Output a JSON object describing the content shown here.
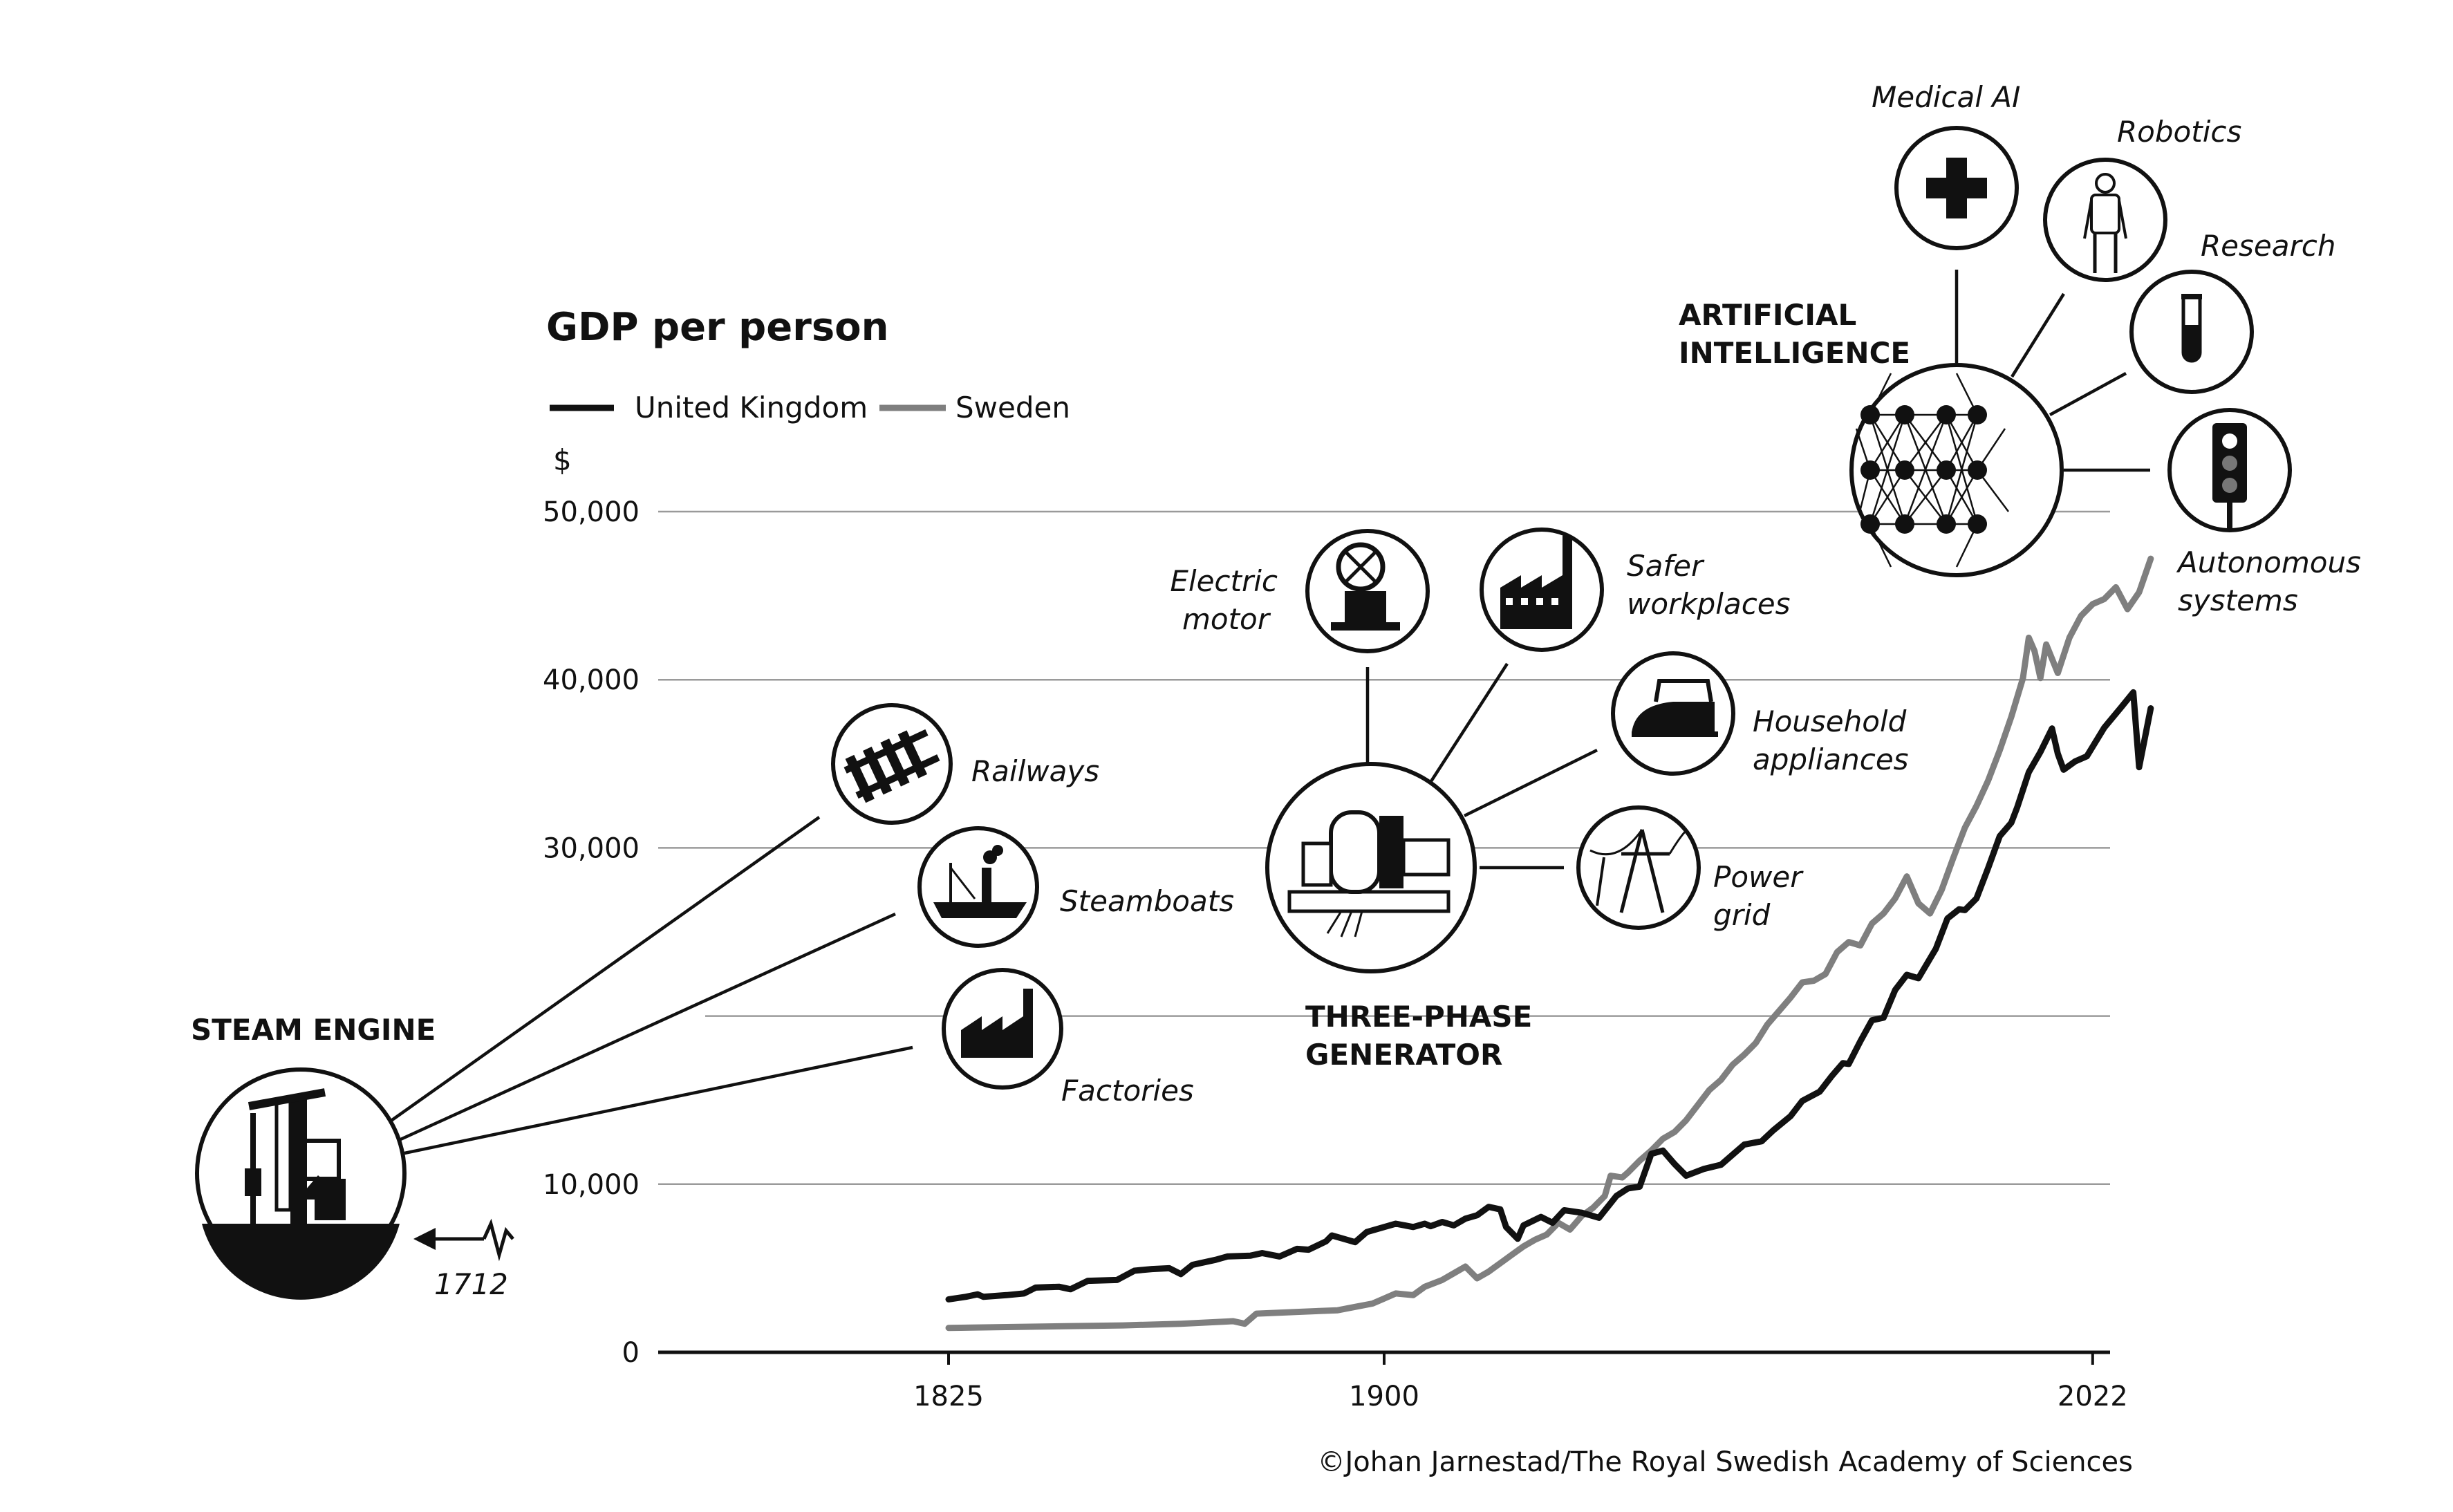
{
  "chart_data": {
    "type": "line",
    "title": "GDP per person",
    "ylabel": "$",
    "xlabel": "",
    "xlim": [
      1775,
      2025
    ],
    "ylim": [
      0,
      50000
    ],
    "x_ticks": [
      "1825",
      "1900",
      "2022"
    ],
    "x_tick_values": [
      1825,
      1900,
      2022
    ],
    "y_ticks": [
      "0",
      "10,000",
      "30,000",
      "40,000",
      "50,000"
    ],
    "y_tick_values": [
      0,
      10000,
      30000,
      40000,
      50000
    ],
    "legend": [
      "United Kingdom",
      "Sweden"
    ],
    "series": [
      {
        "name": "United Kingdom",
        "color": "#111111",
        "points": [
          [
            1825,
            3150
          ],
          [
            1828,
            3300
          ],
          [
            1830,
            3450
          ],
          [
            1831,
            3300
          ],
          [
            1835,
            3400
          ],
          [
            1838,
            3500
          ],
          [
            1840,
            3850
          ],
          [
            1844,
            3900
          ],
          [
            1846,
            3750
          ],
          [
            1849,
            4250
          ],
          [
            1854,
            4300
          ],
          [
            1857,
            4850
          ],
          [
            1860,
            4950
          ],
          [
            1863,
            5000
          ],
          [
            1865,
            4650
          ],
          [
            1867,
            5200
          ],
          [
            1871,
            5500
          ],
          [
            1873,
            5700
          ],
          [
            1877,
            5750
          ],
          [
            1879,
            5900
          ],
          [
            1882,
            5700
          ],
          [
            1885,
            6150
          ],
          [
            1887,
            6100
          ],
          [
            1890,
            6600
          ],
          [
            1891,
            6950
          ],
          [
            1893,
            6750
          ],
          [
            1895,
            6550
          ],
          [
            1897,
            7150
          ],
          [
            1900,
            7450
          ],
          [
            1902,
            7650
          ],
          [
            1905,
            7450
          ],
          [
            1907,
            7650
          ],
          [
            1908,
            7500
          ],
          [
            1910,
            7750
          ],
          [
            1912,
            7550
          ],
          [
            1914,
            7950
          ],
          [
            1916,
            8150
          ],
          [
            1918,
            8650
          ],
          [
            1920,
            8500
          ],
          [
            1921,
            7450
          ],
          [
            1923,
            6750
          ],
          [
            1924,
            7550
          ],
          [
            1927,
            8050
          ],
          [
            1929,
            7700
          ],
          [
            1931,
            8450
          ],
          [
            1934,
            8300
          ],
          [
            1937,
            8000
          ],
          [
            1940,
            9300
          ],
          [
            1942,
            9750
          ],
          [
            1944,
            9850
          ],
          [
            1946,
            11800
          ],
          [
            1948,
            12000
          ],
          [
            1950,
            11200
          ],
          [
            1952,
            10500
          ],
          [
            1955,
            10900
          ],
          [
            1958,
            11150
          ],
          [
            1960,
            11750
          ],
          [
            1962,
            12350
          ],
          [
            1965,
            12550
          ],
          [
            1967,
            13200
          ],
          [
            1970,
            14050
          ],
          [
            1972,
            14950
          ],
          [
            1975,
            15500
          ],
          [
            1977,
            16400
          ],
          [
            1979,
            17200
          ],
          [
            1980,
            17150
          ],
          [
            1982,
            18500
          ],
          [
            1984,
            19750
          ],
          [
            1986,
            19900
          ],
          [
            1988,
            21550
          ],
          [
            1990,
            22450
          ],
          [
            1992,
            22250
          ],
          [
            1995,
            24000
          ],
          [
            1997,
            25800
          ],
          [
            1999,
            26350
          ],
          [
            2000,
            26300
          ],
          [
            2002,
            27000
          ],
          [
            2004,
            28800
          ],
          [
            2006,
            30700
          ],
          [
            2008,
            31500
          ],
          [
            2009,
            32400
          ],
          [
            2011,
            34500
          ],
          [
            2013,
            35700
          ],
          [
            2015,
            37100
          ],
          [
            2016,
            35600
          ],
          [
            2017,
            34650
          ],
          [
            2019,
            35150
          ],
          [
            2021,
            35450
          ],
          [
            2024,
            37150
          ],
          [
            2027,
            38400
          ],
          [
            2029,
            39250
          ],
          [
            2030,
            34800
          ],
          [
            2032,
            38300
          ]
        ]
      },
      {
        "name": "Sweden",
        "color": "#7f7f7f",
        "points": [
          [
            1825,
            1450
          ],
          [
            1835,
            1500
          ],
          [
            1845,
            1550
          ],
          [
            1855,
            1600
          ],
          [
            1865,
            1700
          ],
          [
            1874,
            1850
          ],
          [
            1876,
            1700
          ],
          [
            1878,
            2300
          ],
          [
            1885,
            2400
          ],
          [
            1892,
            2500
          ],
          [
            1895,
            2700
          ],
          [
            1898,
            2900
          ],
          [
            1900,
            3200
          ],
          [
            1902,
            3500
          ],
          [
            1905,
            3400
          ],
          [
            1907,
            3900
          ],
          [
            1910,
            4300
          ],
          [
            1912,
            4700
          ],
          [
            1914,
            5100
          ],
          [
            1916,
            4400
          ],
          [
            1918,
            4800
          ],
          [
            1920,
            5300
          ],
          [
            1922,
            5800
          ],
          [
            1924,
            6300
          ],
          [
            1926,
            6700
          ],
          [
            1928,
            7000
          ],
          [
            1930,
            7700
          ],
          [
            1932,
            7300
          ],
          [
            1934,
            8100
          ],
          [
            1936,
            8600
          ],
          [
            1938,
            9300
          ],
          [
            1939,
            10500
          ],
          [
            1941,
            10400
          ],
          [
            1942,
            10700
          ],
          [
            1944,
            11400
          ],
          [
            1946,
            12000
          ],
          [
            1948,
            12700
          ],
          [
            1950,
            13100
          ],
          [
            1952,
            13800
          ],
          [
            1954,
            14700
          ],
          [
            1956,
            15600
          ],
          [
            1958,
            16200
          ],
          [
            1960,
            17100
          ],
          [
            1962,
            17700
          ],
          [
            1964,
            18400
          ],
          [
            1966,
            19500
          ],
          [
            1968,
            20300
          ],
          [
            1970,
            21100
          ],
          [
            1972,
            22000
          ],
          [
            1974,
            22100
          ],
          [
            1976,
            22500
          ],
          [
            1978,
            23800
          ],
          [
            1980,
            24400
          ],
          [
            1982,
            24200
          ],
          [
            1984,
            25500
          ],
          [
            1986,
            26100
          ],
          [
            1988,
            27000
          ],
          [
            1990,
            28300
          ],
          [
            1992,
            26700
          ],
          [
            1994,
            26100
          ],
          [
            1996,
            27500
          ],
          [
            1998,
            29400
          ],
          [
            2000,
            31200
          ],
          [
            2002,
            32500
          ],
          [
            2004,
            34000
          ],
          [
            2006,
            35800
          ],
          [
            2008,
            37800
          ],
          [
            2010,
            40100
          ],
          [
            2011,
            42500
          ],
          [
            2012,
            41700
          ],
          [
            2013,
            40100
          ],
          [
            2014,
            42100
          ],
          [
            2016,
            40400
          ],
          [
            2018,
            42500
          ],
          [
            2020,
            43800
          ],
          [
            2022,
            44500
          ],
          [
            2024,
            44800
          ],
          [
            2026,
            45500
          ],
          [
            2028,
            44200
          ],
          [
            2030,
            45200
          ],
          [
            2032,
            47200
          ]
        ]
      }
    ],
    "annotations": [
      {
        "name": "steam-engine",
        "label": "STEAM ENGINE",
        "year_label": "1712",
        "effects": [
          "Railways",
          "Steamboats",
          "Factories"
        ]
      },
      {
        "name": "three-phase-generator",
        "label": "THREE-PHASE GENERATOR",
        "effects": [
          "Electric motor",
          "Safer workplaces",
          "Household appliances",
          "Power grid"
        ]
      },
      {
        "name": "artificial-intelligence",
        "label": "ARTIFICIAL INTELLIGENCE",
        "effects": [
          "Medical AI",
          "Robotics",
          "Research",
          "Autonomous systems"
        ]
      }
    ]
  },
  "labels": {
    "title": "GDP per person",
    "legend_uk": "United Kingdom",
    "legend_se": "Sweden",
    "y_unit": "$",
    "steam_engine": "STEAM ENGINE",
    "steam_year": "1712",
    "railways": "Railways",
    "steamboats": "Steamboats",
    "factories": "Factories",
    "generator_line1": "THREE-PHASE",
    "generator_line2": "GENERATOR",
    "electric_motor_1": "Electric",
    "electric_motor_2": "motor",
    "safer_1": "Safer",
    "safer_2": "workplaces",
    "household_1": "Household",
    "household_2": "appliances",
    "power_1": "Power",
    "power_2": "grid",
    "ai_line1": "ARTIFICIAL",
    "ai_line2": "INTELLIGENCE",
    "medical_ai": "Medical AI",
    "robotics": "Robotics",
    "research": "Research",
    "autonomous_1": "Autonomous",
    "autonomous_2": "systems",
    "credit": "©Johan Jarnestad/The Royal Swedish Academy of Sciences"
  },
  "colors": {
    "uk": "#111111",
    "sweden": "#7f7f7f",
    "grid": "#9a9a9a"
  }
}
